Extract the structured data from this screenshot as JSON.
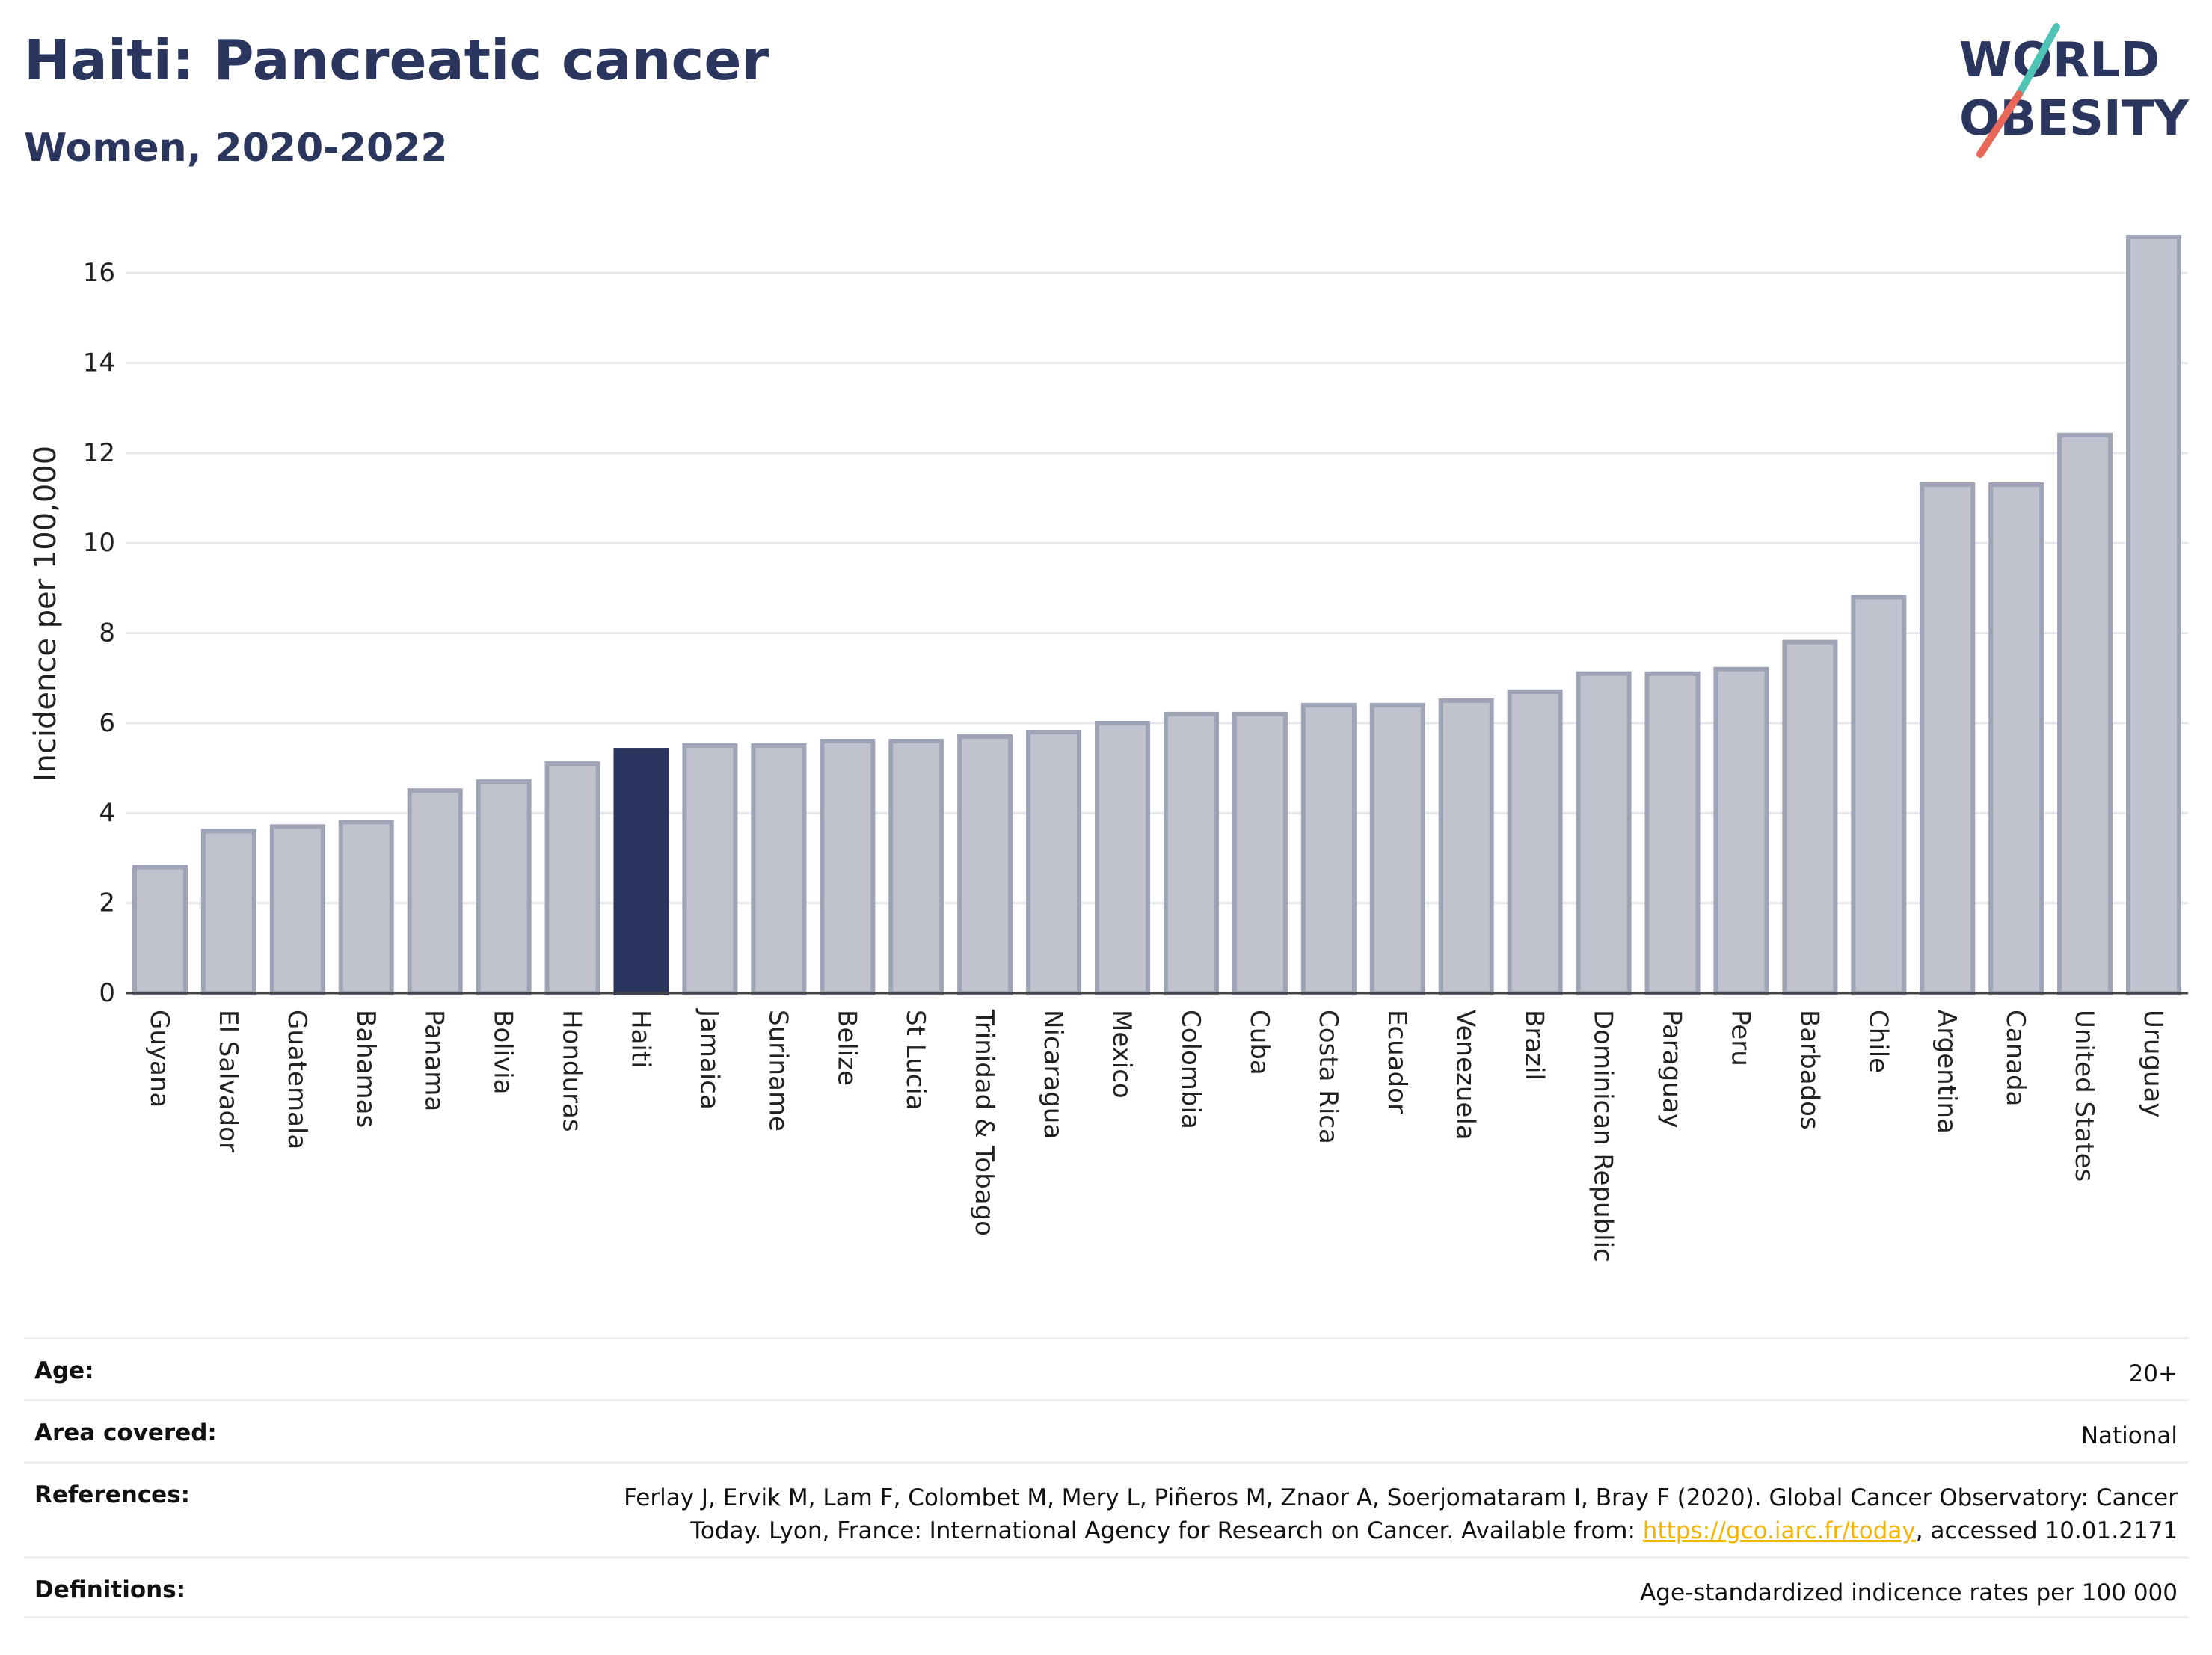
{
  "header": {
    "title": "Haiti: Pancreatic cancer",
    "subtitle": "Women, 2020-2022"
  },
  "logo": {
    "line1": "WORLD",
    "line2": "OBESITY",
    "accent_colors": [
      "#4fc3b5",
      "#e8685a"
    ],
    "text_color": "#2b365e"
  },
  "chart_data": {
    "type": "bar",
    "ylabel": "Incidence per 100,000",
    "ylim": [
      0,
      17
    ],
    "yticks": [
      0,
      2,
      4,
      6,
      8,
      10,
      12,
      14,
      16
    ],
    "grid": true,
    "highlight": "Haiti",
    "colors": {
      "bar": "#c0c3ce",
      "bar_edge": "#9ea3b6",
      "highlight": "#2b365e",
      "grid": "#e6e7ec"
    },
    "categories": [
      "Guyana",
      "El Salvador",
      "Guatemala",
      "Bahamas",
      "Panama",
      "Bolivia",
      "Honduras",
      "Haiti",
      "Jamaica",
      "Suriname",
      "Belize",
      "St Lucia",
      "Trinidad & Tobago",
      "Nicaragua",
      "Mexico",
      "Colombia",
      "Cuba",
      "Costa Rica",
      "Ecuador",
      "Venezuela",
      "Brazil",
      "Dominican Republic",
      "Paraguay",
      "Peru",
      "Barbados",
      "Chile",
      "Argentina",
      "Canada",
      "United States",
      "Uruguay"
    ],
    "values": [
      2.8,
      3.6,
      3.7,
      3.8,
      4.5,
      4.7,
      5.1,
      5.4,
      5.5,
      5.5,
      5.6,
      5.6,
      5.7,
      5.8,
      6.0,
      6.2,
      6.2,
      6.4,
      6.4,
      6.5,
      6.7,
      7.1,
      7.1,
      7.2,
      7.8,
      8.8,
      11.3,
      11.3,
      12.4,
      16.8
    ]
  },
  "meta": [
    {
      "label": "Age:",
      "value": "20+"
    },
    {
      "label": "Area covered:",
      "value": "National"
    },
    {
      "label": "References:",
      "value_pre": "Ferlay J, Ervik M, Lam F, Colombet M, Mery L, Piñeros M, Znaor A, Soerjomataram I, Bray F (2020). Global Cancer Observatory: Cancer Today. Lyon, France: International Agency for Research on Cancer. Available from: ",
      "link": "https://gco.iarc.fr/today",
      "value_post": ", accessed 10.01.2171"
    },
    {
      "label": "Definitions:",
      "value": "Age-standardized indicence rates per 100 000"
    }
  ]
}
